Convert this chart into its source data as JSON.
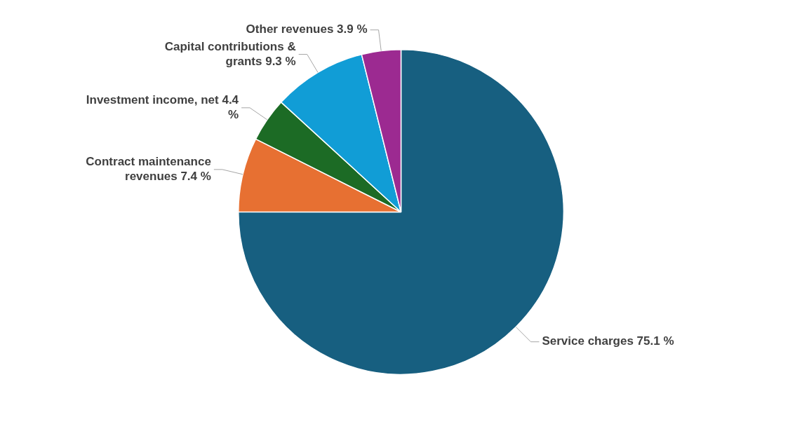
{
  "chart_data": {
    "type": "pie",
    "categories": [
      "Service charges",
      "Contract maintenance revenues",
      "Investment income, net",
      "Capital contributions & grants",
      "Other revenues"
    ],
    "values": [
      75.1,
      7.4,
      4.4,
      9.3,
      3.9
    ],
    "value_labels": [
      "75.1 %",
      "7.4 %",
      "4.4 %",
      "9.3 %",
      "3.9 %"
    ],
    "colors": [
      "#175f80",
      "#e77032",
      "#1c6b25",
      "#119dd6",
      "#9c2a91"
    ],
    "legend": false
  }
}
